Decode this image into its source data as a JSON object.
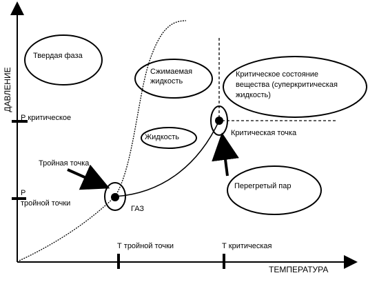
{
  "axes": {
    "y_label": "ДАВЛЕНИЕ",
    "x_label": "ТЕМПЕРАТУРА",
    "y_ticks": [
      "Р критическое",
      [
        "Р",
        "тройной точки"
      ]
    ],
    "x_ticks": [
      "Т тройной точки",
      "Т критическая"
    ]
  },
  "regions": {
    "solid": "Твердая фаза",
    "compressible_liquid": [
      "Сжимаемая",
      "жидкость"
    ],
    "supercritical": [
      "Критическое состояние",
      "вещества (суперкритическая",
      "жидкость)"
    ],
    "liquid": "Жидкость",
    "gas": "ГАЗ",
    "superheated_vapor": "Перегретый пар"
  },
  "points": {
    "triple": "Тройная точка",
    "critical": "Критическая точка"
  }
}
